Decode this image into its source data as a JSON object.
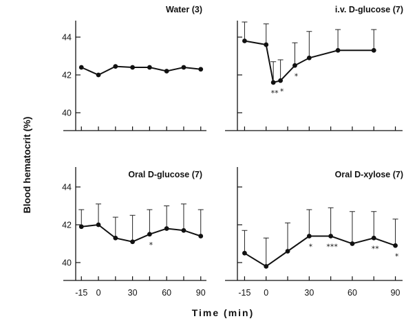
{
  "chart_data": {
    "type": "line",
    "xlabel": "Time (min)",
    "ylabel": "Blood hematocrit (%)",
    "x_ticks": [
      -15,
      0,
      30,
      60,
      90
    ],
    "y_ticks": [
      40,
      42,
      44
    ],
    "xlim": [
      -20,
      95
    ],
    "ylim": [
      39.5,
      45
    ],
    "panels": [
      {
        "title": "Water (3)",
        "x": [
          -15,
          0,
          15,
          30,
          45,
          60,
          75,
          90
        ],
        "y": [
          42.4,
          42.0,
          42.45,
          42.4,
          42.4,
          42.2,
          42.4,
          42.3
        ],
        "err_upper": [
          null,
          null,
          null,
          null,
          null,
          null,
          null,
          null
        ],
        "annotations": [],
        "show_y_ticks": true,
        "show_x_ticks": false
      },
      {
        "title": "i.v. D-glucose (7)",
        "x": [
          -15,
          0,
          5,
          10,
          20,
          30,
          50,
          75
        ],
        "y": [
          43.8,
          43.6,
          41.6,
          41.7,
          42.5,
          42.9,
          43.3,
          43.3
        ],
        "err_upper": [
          44.8,
          44.7,
          42.7,
          42.8,
          43.7,
          44.3,
          44.4,
          44.4
        ],
        "annotations": [
          {
            "x": 5,
            "y": 41.6,
            "text": "**"
          },
          {
            "x": 10,
            "y": 41.7,
            "text": "*"
          },
          {
            "x": 20,
            "y": 42.5,
            "text": "*"
          }
        ],
        "show_y_ticks": false,
        "show_x_ticks": false
      },
      {
        "title": "Oral D-glucose (7)",
        "x": [
          -15,
          0,
          15,
          30,
          45,
          60,
          75,
          90
        ],
        "y": [
          41.9,
          42.0,
          41.3,
          41.1,
          41.5,
          41.8,
          41.7,
          41.4
        ],
        "err_upper": [
          42.8,
          43.1,
          42.4,
          42.5,
          42.8,
          43.0,
          43.1,
          42.8
        ],
        "annotations": [
          {
            "x": 45,
            "y": 41.5,
            "text": "*"
          }
        ],
        "show_y_ticks": true,
        "show_x_ticks": true
      },
      {
        "title": "Oral D-xylose (7)",
        "x": [
          -15,
          0,
          15,
          30,
          45,
          60,
          75,
          90
        ],
        "y": [
          40.5,
          39.8,
          40.6,
          41.4,
          41.4,
          41.0,
          41.3,
          40.9
        ],
        "err_upper": [
          41.7,
          41.3,
          42.1,
          42.8,
          42.9,
          42.7,
          42.7,
          42.3
        ],
        "annotations": [
          {
            "x": 30,
            "y": 41.4,
            "text": "*"
          },
          {
            "x": 45,
            "y": 41.4,
            "text": "***"
          },
          {
            "x": 75,
            "y": 41.3,
            "text": "**"
          },
          {
            "x": 90,
            "y": 40.9,
            "text": "*"
          }
        ],
        "show_y_ticks": false,
        "show_x_ticks": true
      }
    ]
  }
}
